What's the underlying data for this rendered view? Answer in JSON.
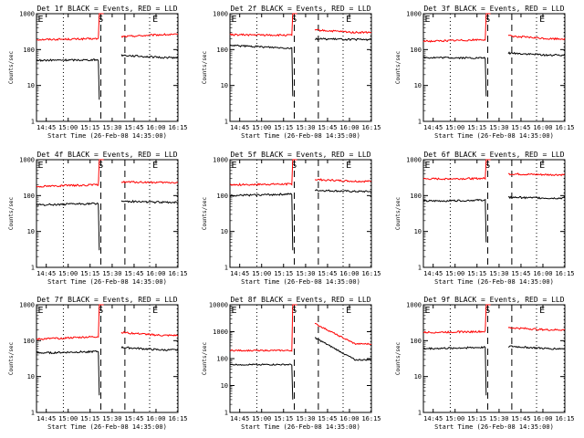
{
  "figure_title": "",
  "chart_data": [
    {
      "type": "line",
      "title": "Det 1f BLACK = Events, RED = LLD",
      "xlabel": "Start Time (26-Feb-08 14:35:00)",
      "ylabel": "Counts/sec",
      "yscale": "log",
      "ylim": [
        1,
        1000
      ],
      "x_ticks": [
        "14:45",
        "15:00",
        "15:15",
        "15:30",
        "15:45",
        "16:00",
        "16:15"
      ],
      "y_ticks": [
        "1",
        "10",
        "100",
        "1000"
      ],
      "markers": [
        "E",
        "S",
        "E"
      ],
      "series": [
        {
          "color": "#ff0000",
          "values": [
            190,
            200,
            1000,
            230,
            260
          ]
        },
        {
          "color": "#000000",
          "values": [
            50,
            52,
            4,
            70,
            60
          ]
        }
      ]
    },
    {
      "type": "line",
      "title": "Det 2f BLACK = Events, RED = LLD",
      "xlabel": "Start Time (26-Feb-08 14:35:00)",
      "ylabel": "Counts/sec",
      "yscale": "log",
      "ylim": [
        1,
        1000
      ],
      "x_ticks": [
        "14:45",
        "15:00",
        "15:15",
        "15:30",
        "15:45",
        "16:00",
        "16:15"
      ],
      "y_ticks": [
        "1",
        "10",
        "100",
        "1000"
      ],
      "markers": [
        "E",
        "S",
        "E"
      ],
      "series": [
        {
          "color": "#ff0000",
          "values": [
            260,
            250,
            1000,
            350,
            300
          ]
        },
        {
          "color": "#000000",
          "values": [
            130,
            110,
            5,
            200,
            190
          ]
        }
      ]
    },
    {
      "type": "line",
      "title": "Det 3f BLACK = Events, RED = LLD",
      "xlabel": "Start Time (26-Feb-08 14:35:00)",
      "ylabel": "Counts/sec",
      "yscale": "log",
      "ylim": [
        1,
        1000
      ],
      "x_ticks": [
        "14:45",
        "15:00",
        "15:15",
        "15:30",
        "15:45",
        "16:00",
        "16:15"
      ],
      "y_ticks": [
        "1",
        "10",
        "100",
        "1000"
      ],
      "markers": [
        "E",
        "S",
        "E"
      ],
      "series": [
        {
          "color": "#ff0000",
          "values": [
            170,
            190,
            1000,
            240,
            200
          ]
        },
        {
          "color": "#000000",
          "values": [
            60,
            58,
            5,
            80,
            70
          ]
        }
      ]
    },
    {
      "type": "line",
      "title": "Det 4f BLACK = Events, RED = LLD",
      "xlabel": "Start Time (26-Feb-08 14:35:00)",
      "ylabel": "Counts/sec",
      "yscale": "log",
      "ylim": [
        1,
        1000
      ],
      "x_ticks": [
        "14:45",
        "15:00",
        "15:15",
        "15:30",
        "15:45",
        "16:00",
        "16:15"
      ],
      "y_ticks": [
        "1",
        "10",
        "100",
        "1000"
      ],
      "markers": [
        "E",
        "S",
        "E"
      ],
      "series": [
        {
          "color": "#ff0000",
          "values": [
            180,
            200,
            1000,
            240,
            230
          ]
        },
        {
          "color": "#000000",
          "values": [
            55,
            60,
            3,
            70,
            65
          ]
        }
      ]
    },
    {
      "type": "line",
      "title": "Det 5f BLACK = Events, RED = LLD",
      "xlabel": "Start Time (26-Feb-08 14:35:00)",
      "ylabel": "Counts/sec",
      "yscale": "log",
      "ylim": [
        1,
        1000
      ],
      "x_ticks": [
        "14:45",
        "15:00",
        "15:15",
        "15:30",
        "15:45",
        "16:00",
        "16:15"
      ],
      "y_ticks": [
        "1",
        "10",
        "100",
        "1000"
      ],
      "markers": [
        "E",
        "S",
        "E"
      ],
      "series": [
        {
          "color": "#ff0000",
          "values": [
            200,
            210,
            1000,
            280,
            250
          ]
        },
        {
          "color": "#000000",
          "values": [
            100,
            110,
            3,
            140,
            130
          ]
        }
      ]
    },
    {
      "type": "line",
      "title": "Det 6f BLACK = Events, RED = LLD",
      "xlabel": "Start Time (26-Feb-08 14:35:00)",
      "ylabel": "Counts/sec",
      "yscale": "log",
      "ylim": [
        1,
        1000
      ],
      "x_ticks": [
        "14:45",
        "15:00",
        "15:15",
        "15:30",
        "15:45",
        "16:00",
        "16:15"
      ],
      "y_ticks": [
        "1",
        "10",
        "100",
        "1000"
      ],
      "markers": [
        "E",
        "S",
        "E"
      ],
      "series": [
        {
          "color": "#ff0000",
          "values": [
            290,
            300,
            1000,
            400,
            380
          ]
        },
        {
          "color": "#000000",
          "values": [
            70,
            75,
            5,
            90,
            85
          ]
        }
      ]
    },
    {
      "type": "line",
      "title": "Det 7f BLACK = Events, RED = LLD",
      "xlabel": "Start Time (26-Feb-08 14:35:00)",
      "ylabel": "Counts/sec",
      "yscale": "log",
      "ylim": [
        1,
        1000
      ],
      "x_ticks": [
        "14:45",
        "15:00",
        "15:15",
        "15:30",
        "15:45",
        "16:00",
        "16:15"
      ],
      "y_ticks": [
        "1",
        "10",
        "100",
        "1000"
      ],
      "markers": [
        "E",
        "S",
        "E"
      ],
      "series": [
        {
          "color": "#ff0000",
          "values": [
            110,
            130,
            1000,
            170,
            140
          ]
        },
        {
          "color": "#000000",
          "values": [
            45,
            50,
            3,
            65,
            55
          ]
        }
      ]
    },
    {
      "type": "line",
      "title": "Det 8f BLACK = Events, RED = LLD",
      "xlabel": "Start Time (26-Feb-08 14:35:00)",
      "ylabel": "Counts/sec",
      "yscale": "log",
      "ylim": [
        1,
        10000
      ],
      "x_ticks": [
        "14:45",
        "15:00",
        "15:15",
        "15:30",
        "15:45",
        "16:00",
        "16:15"
      ],
      "y_ticks": [
        "1",
        "10",
        "100",
        "1000",
        "10000"
      ],
      "markers": [
        "E",
        "S",
        "E"
      ],
      "series": [
        {
          "color": "#ff0000",
          "values": [
            200,
            200,
            10000,
            2000,
            350
          ]
        },
        {
          "color": "#000000",
          "values": [
            60,
            60,
            3,
            600,
            90
          ]
        }
      ]
    },
    {
      "type": "line",
      "title": "Det 9f BLACK = Events, RED = LLD",
      "xlabel": "Start Time (26-Feb-08 14:35:00)",
      "ylabel": "Counts/sec",
      "yscale": "log",
      "ylim": [
        1,
        1000
      ],
      "x_ticks": [
        "14:45",
        "15:00",
        "15:15",
        "15:30",
        "15:45",
        "16:00",
        "16:15"
      ],
      "y_ticks": [
        "1",
        "10",
        "100",
        "1000"
      ],
      "markers": [
        "E",
        "S",
        "E"
      ],
      "series": [
        {
          "color": "#ff0000",
          "values": [
            170,
            180,
            1000,
            230,
            200
          ]
        },
        {
          "color": "#000000",
          "values": [
            60,
            65,
            3,
            70,
            60
          ]
        }
      ]
    }
  ]
}
